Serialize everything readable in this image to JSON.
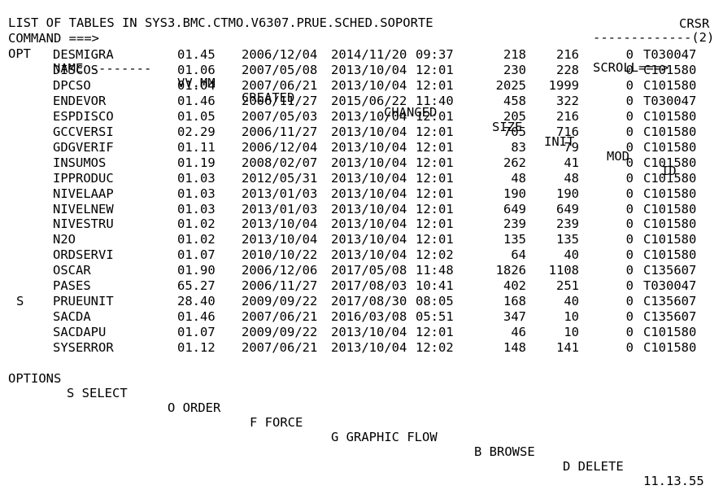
{
  "header": {
    "title": "LIST OF TABLES IN SYS3.BMC.CTMO.V6307.PRUE.SCHED.SOPORTE",
    "row_counter": "-------------(2)",
    "command_label": "COMMAND ===>",
    "command_value": "",
    "scroll_label": "SCROLL===>",
    "scroll_value": "CRSR"
  },
  "columns": {
    "opt": "OPT",
    "name": "NAME --------",
    "vvmm": "VV.MM",
    "created": "CREATED",
    "changed": "CHANGED",
    "size": "SIZE",
    "init": "INIT",
    "mod": "MOD",
    "id": "ID"
  },
  "rows": [
    {
      "opt": "",
      "name": "DESMIGRA",
      "vvmm": "01.45",
      "created": "2006/12/04",
      "changed_date": "2014/11/20",
      "changed_time": "09:37",
      "size": "218",
      "init": "216",
      "mod": "0",
      "id": "T030047"
    },
    {
      "opt": "",
      "name": "DISCOS",
      "vvmm": "01.06",
      "created": "2007/05/08",
      "changed_date": "2013/10/04",
      "changed_time": "12:01",
      "size": "230",
      "init": "228",
      "mod": "0",
      "id": "C101580"
    },
    {
      "opt": "",
      "name": "DPCSO",
      "vvmm": "01.04",
      "created": "2007/06/21",
      "changed_date": "2013/10/04",
      "changed_time": "12:01",
      "size": "2025",
      "init": "1999",
      "mod": "0",
      "id": "C101580"
    },
    {
      "opt": "",
      "name": "ENDEVOR",
      "vvmm": "01.46",
      "created": "2006/11/27",
      "changed_date": "2015/06/22",
      "changed_time": "11:40",
      "size": "458",
      "init": "322",
      "mod": "0",
      "id": "T030047"
    },
    {
      "opt": "",
      "name": "ESPDISCO",
      "vvmm": "01.05",
      "created": "2007/05/03",
      "changed_date": "2013/10/04",
      "changed_time": "12:01",
      "size": "205",
      "init": "216",
      "mod": "0",
      "id": "C101580"
    },
    {
      "opt": "",
      "name": "GCCVERSI",
      "vvmm": "02.29",
      "created": "2006/11/27",
      "changed_date": "2013/10/04",
      "changed_time": "12:01",
      "size": "705",
      "init": "716",
      "mod": "0",
      "id": "C101580"
    },
    {
      "opt": "",
      "name": "GDGVERIF",
      "vvmm": "01.11",
      "created": "2006/12/04",
      "changed_date": "2013/10/04",
      "changed_time": "12:01",
      "size": "83",
      "init": "79",
      "mod": "0",
      "id": "C101580"
    },
    {
      "opt": "",
      "name": "INSUMOS",
      "vvmm": "01.19",
      "created": "2008/02/07",
      "changed_date": "2013/10/04",
      "changed_time": "12:01",
      "size": "262",
      "init": "41",
      "mod": "0",
      "id": "C101580"
    },
    {
      "opt": "",
      "name": "IPPRODUC",
      "vvmm": "01.03",
      "created": "2012/05/31",
      "changed_date": "2013/10/04",
      "changed_time": "12:01",
      "size": "48",
      "init": "48",
      "mod": "0",
      "id": "C101580"
    },
    {
      "opt": "",
      "name": "NIVELAAP",
      "vvmm": "01.03",
      "created": "2013/01/03",
      "changed_date": "2013/10/04",
      "changed_time": "12:01",
      "size": "190",
      "init": "190",
      "mod": "0",
      "id": "C101580"
    },
    {
      "opt": "",
      "name": "NIVELNEW",
      "vvmm": "01.03",
      "created": "2013/01/03",
      "changed_date": "2013/10/04",
      "changed_time": "12:01",
      "size": "649",
      "init": "649",
      "mod": "0",
      "id": "C101580"
    },
    {
      "opt": "",
      "name": "NIVESTRU",
      "vvmm": "01.02",
      "created": "2013/10/04",
      "changed_date": "2013/10/04",
      "changed_time": "12:01",
      "size": "239",
      "init": "239",
      "mod": "0",
      "id": "C101580"
    },
    {
      "opt": "",
      "name": "N2O",
      "vvmm": "01.02",
      "created": "2013/10/04",
      "changed_date": "2013/10/04",
      "changed_time": "12:01",
      "size": "135",
      "init": "135",
      "mod": "0",
      "id": "C101580"
    },
    {
      "opt": "",
      "name": "ORDSERVI",
      "vvmm": "01.07",
      "created": "2010/10/22",
      "changed_date": "2013/10/04",
      "changed_time": "12:02",
      "size": "64",
      "init": "40",
      "mod": "0",
      "id": "C101580"
    },
    {
      "opt": "",
      "name": "OSCAR",
      "vvmm": "01.90",
      "created": "2006/12/06",
      "changed_date": "2017/05/08",
      "changed_time": "11:48",
      "size": "1826",
      "init": "1108",
      "mod": "0",
      "id": "C135607"
    },
    {
      "opt": "",
      "name": "PASES",
      "vvmm": "65.27",
      "created": "2006/11/27",
      "changed_date": "2017/08/03",
      "changed_time": "10:41",
      "size": "402",
      "init": "251",
      "mod": "0",
      "id": "T030047"
    },
    {
      "opt": "S",
      "name": "PRUEUNIT",
      "vvmm": "28.40",
      "created": "2009/09/22",
      "changed_date": "2017/08/30",
      "changed_time": "08:05",
      "size": "168",
      "init": "40",
      "mod": "0",
      "id": "C135607"
    },
    {
      "opt": "",
      "name": "SACDA",
      "vvmm": "01.46",
      "created": "2007/06/21",
      "changed_date": "2016/03/08",
      "changed_time": "05:51",
      "size": "347",
      "init": "10",
      "mod": "0",
      "id": "C135607"
    },
    {
      "opt": "",
      "name": "SACDAPU",
      "vvmm": "01.07",
      "created": "2009/09/22",
      "changed_date": "2013/10/04",
      "changed_time": "12:01",
      "size": "46",
      "init": "10",
      "mod": "0",
      "id": "C101580"
    },
    {
      "opt": "",
      "name": "SYSERROR",
      "vvmm": "01.12",
      "created": "2007/06/21",
      "changed_date": "2013/10/04",
      "changed_time": "12:02",
      "size": "148",
      "init": "141",
      "mod": "0",
      "id": "C101580"
    }
  ],
  "footer": {
    "options_label": "OPTIONS",
    "options": [
      "S SELECT",
      "O ORDER",
      "F FORCE",
      "G GRAPHIC FLOW",
      "B BROWSE",
      "D DELETE"
    ],
    "clock": "11.13.55"
  }
}
